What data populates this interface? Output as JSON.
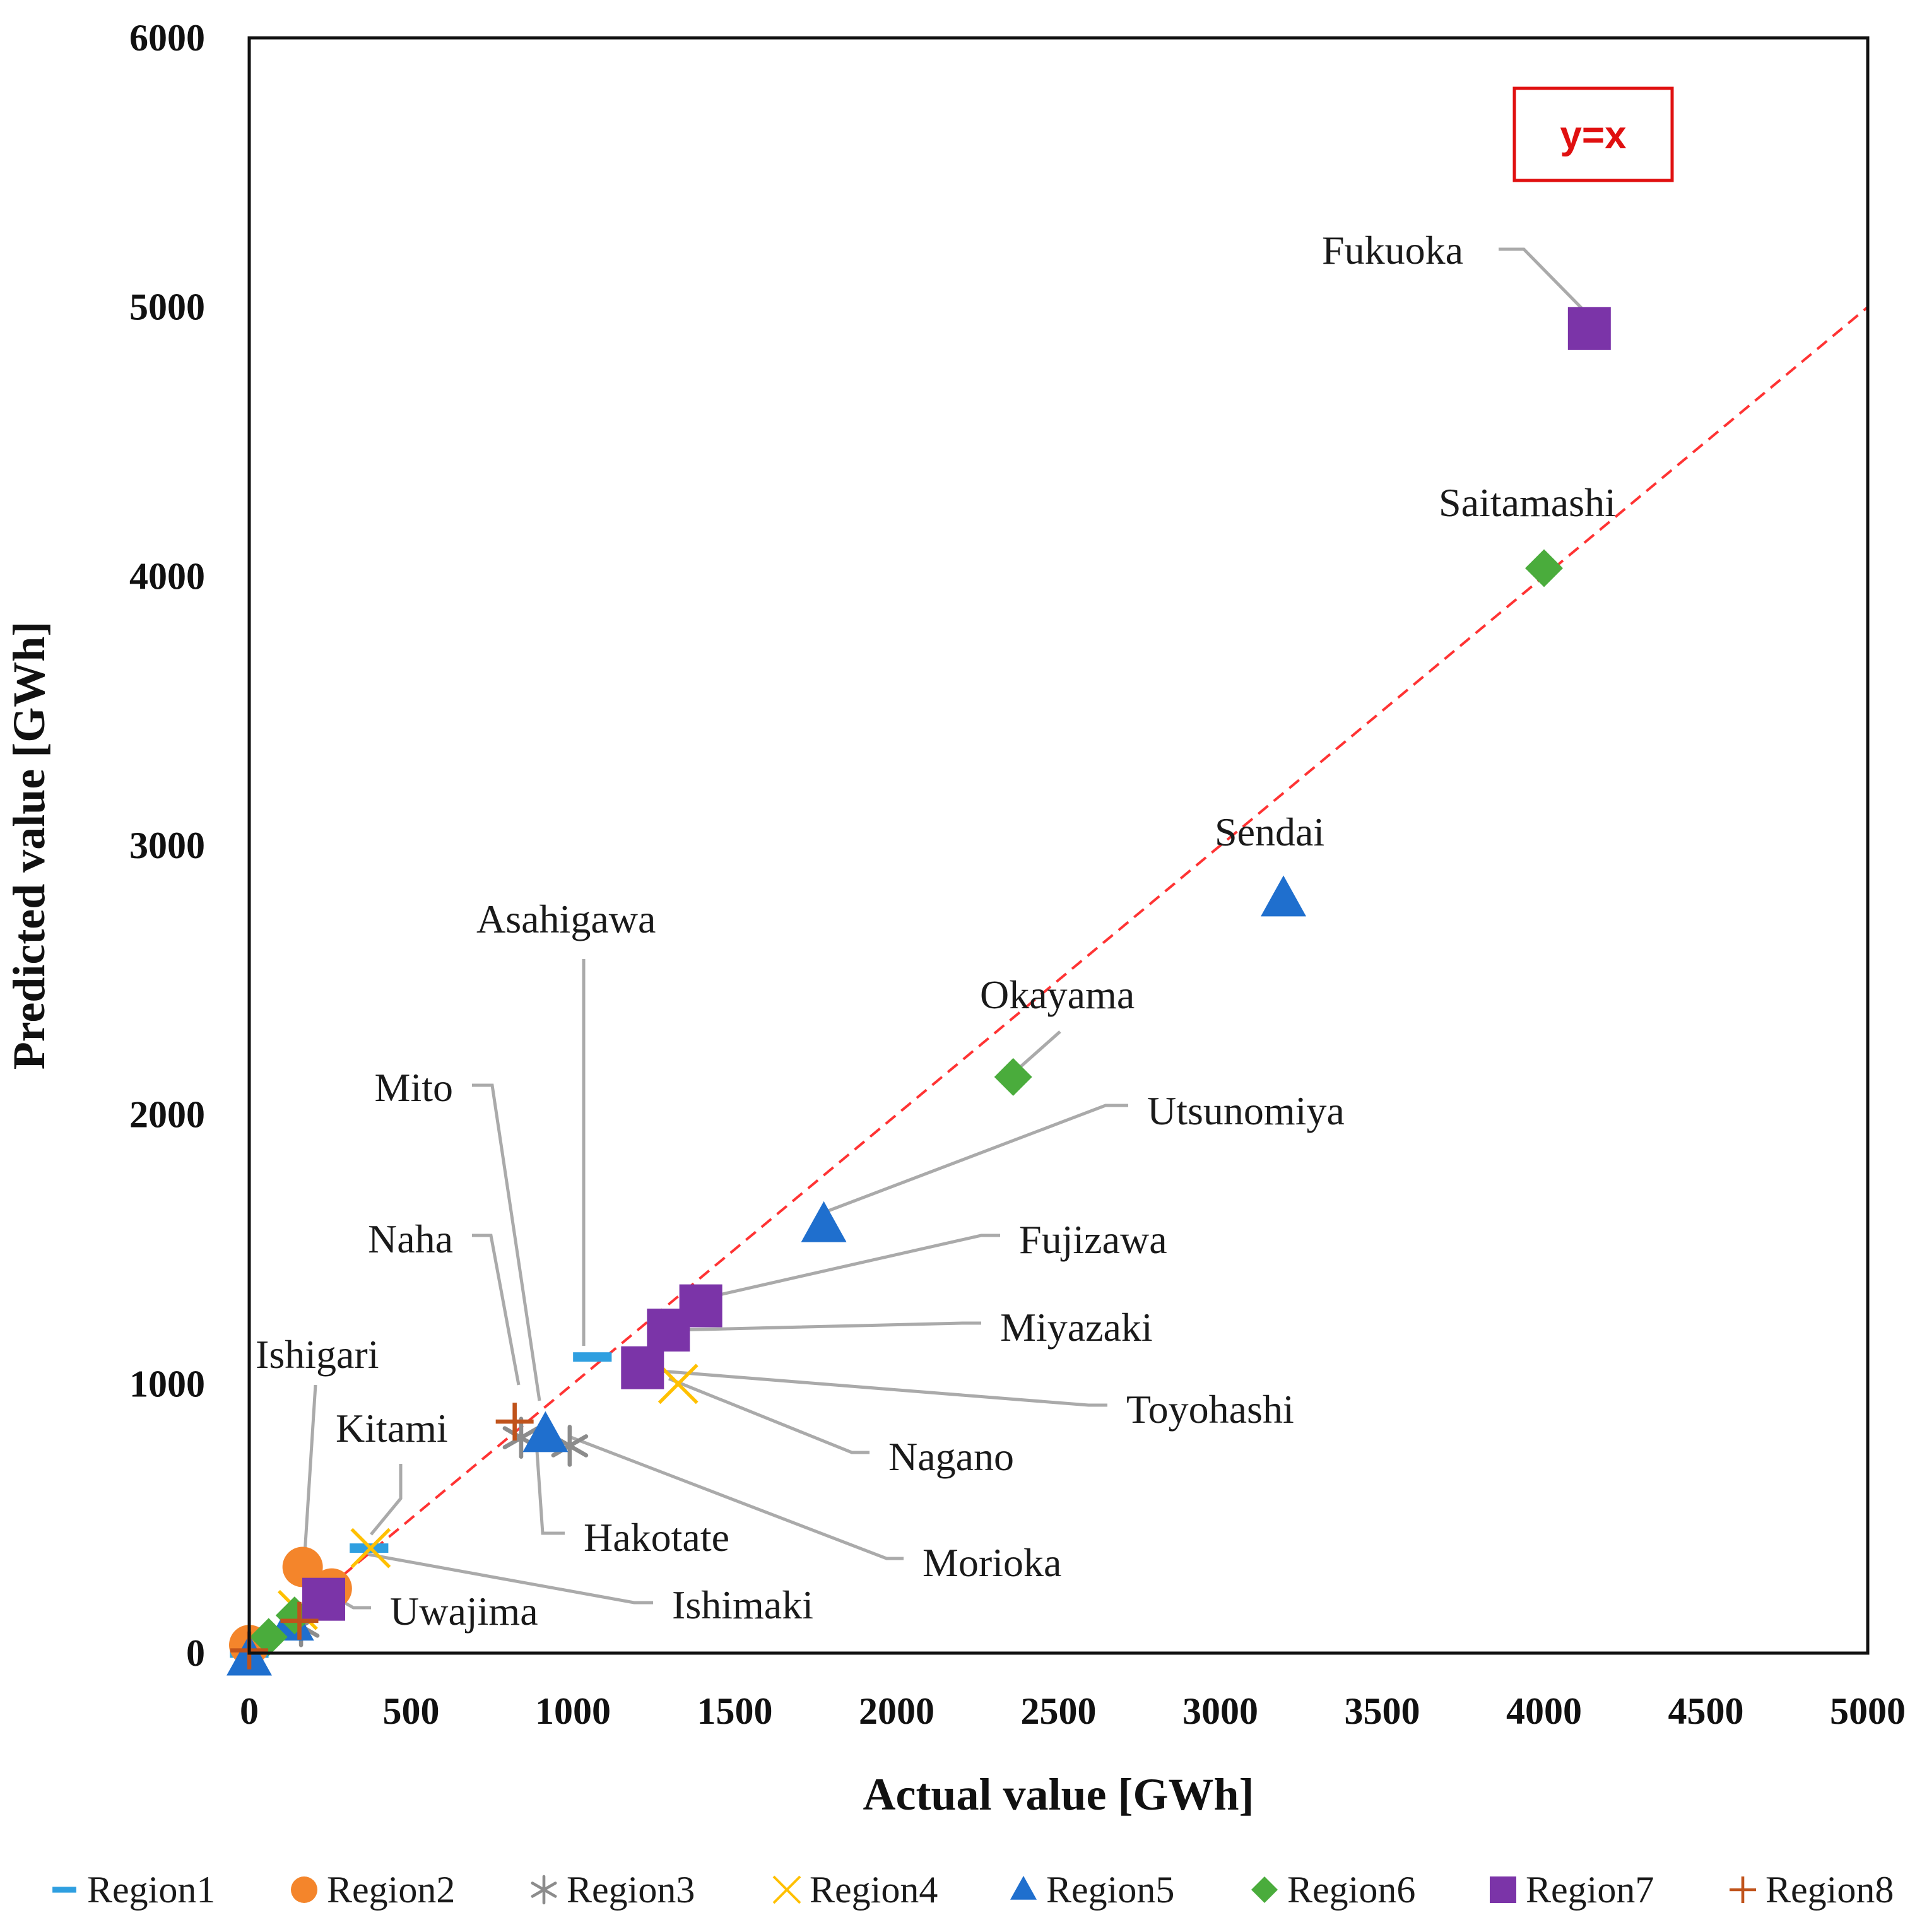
{
  "chart_data": {
    "type": "scatter",
    "xlabel": "Actual value [GWh]",
    "ylabel": "Predicted value [GWh]",
    "xlim": [
      0,
      5000
    ],
    "ylim": [
      0,
      6000
    ],
    "xticks": [
      0,
      500,
      1000,
      1500,
      2000,
      2500,
      3000,
      3500,
      4000,
      4500,
      5000
    ],
    "yticks": [
      0,
      1000,
      2000,
      3000,
      4000,
      5000,
      6000
    ],
    "grid": false,
    "reference_line": {
      "label": "y=x",
      "color": "#ff3333"
    },
    "legend_position": "bottom",
    "series": [
      {
        "name": "Region1",
        "marker": "dash",
        "color": "#2f9fe0",
        "points": [
          {
            "x": 1060,
            "y": 1100
          },
          {
            "x": 370,
            "y": 390
          },
          {
            "x": 0,
            "y": 0
          }
        ]
      },
      {
        "name": "Region2",
        "marker": "circle",
        "color": "#f4852b",
        "points": [
          {
            "x": 165,
            "y": 320
          },
          {
            "x": 255,
            "y": 240
          },
          {
            "x": 0,
            "y": 30
          }
        ]
      },
      {
        "name": "Region3",
        "marker": "asterisk",
        "color": "#8c8c8c",
        "points": [
          {
            "x": 990,
            "y": 770
          },
          {
            "x": 840,
            "y": 800
          },
          {
            "x": 160,
            "y": 100
          }
        ]
      },
      {
        "name": "Region4",
        "marker": "x",
        "color": "#ffc000",
        "points": [
          {
            "x": 1325,
            "y": 1000
          },
          {
            "x": 375,
            "y": 390
          },
          {
            "x": 150,
            "y": 160
          }
        ]
      },
      {
        "name": "Region5",
        "marker": "triangle",
        "color": "#1f6fce",
        "points": [
          {
            "x": 3195,
            "y": 2800
          },
          {
            "x": 1775,
            "y": 1590
          },
          {
            "x": 915,
            "y": 810
          },
          {
            "x": 130,
            "y": 110
          },
          {
            "x": 0,
            "y": -20
          }
        ]
      },
      {
        "name": "Region6",
        "marker": "diamond",
        "color": "#4aac3c",
        "points": [
          {
            "x": 4000,
            "y": 4030
          },
          {
            "x": 2360,
            "y": 2140
          },
          {
            "x": 140,
            "y": 140
          },
          {
            "x": 60,
            "y": 60
          }
        ]
      },
      {
        "name": "Region7",
        "marker": "square",
        "color": "#7b34a8",
        "points": [
          {
            "x": 4140,
            "y": 4920
          },
          {
            "x": 1395,
            "y": 1290
          },
          {
            "x": 1295,
            "y": 1200
          },
          {
            "x": 1215,
            "y": 1060
          },
          {
            "x": 230,
            "y": 200
          }
        ]
      },
      {
        "name": "Region8",
        "marker": "plus",
        "color": "#c0531b",
        "points": [
          {
            "x": 820,
            "y": 860
          },
          {
            "x": 155,
            "y": 120
          },
          {
            "x": 0,
            "y": 10
          }
        ]
      }
    ],
    "annotations": [
      {
        "text": "Fukuoka",
        "point": [
          4140,
          4920
        ]
      },
      {
        "text": "Saitamashi",
        "point": [
          4000,
          4030
        ]
      },
      {
        "text": "Sendai",
        "point": [
          3195,
          2800
        ]
      },
      {
        "text": "Okayama",
        "point": [
          2360,
          2140
        ]
      },
      {
        "text": "Utsunomiya",
        "point": [
          1775,
          1590
        ]
      },
      {
        "text": "Fujizawa",
        "point": [
          1395,
          1290
        ]
      },
      {
        "text": "Miyazaki",
        "point": [
          1295,
          1200
        ]
      },
      {
        "text": "Toyohashi",
        "point": [
          1215,
          1060
        ]
      },
      {
        "text": "Nagano",
        "point": [
          1325,
          1000
        ]
      },
      {
        "text": "Morioka",
        "point": [
          990,
          770
        ]
      },
      {
        "text": "Hakotate",
        "point": [
          915,
          810
        ]
      },
      {
        "text": "Asahigawa",
        "point": [
          1060,
          1100
        ]
      },
      {
        "text": "Mito",
        "point": [
          915,
          810
        ]
      },
      {
        "text": "Naha",
        "point": [
          840,
          800
        ]
      },
      {
        "text": "Ishigari",
        "point": [
          165,
          320
        ]
      },
      {
        "text": "Kitami",
        "point": [
          370,
          390
        ]
      },
      {
        "text": "Uwajima",
        "point": [
          230,
          200
        ]
      },
      {
        "text": "Ishimaki",
        "point": [
          375,
          390
        ]
      }
    ]
  }
}
